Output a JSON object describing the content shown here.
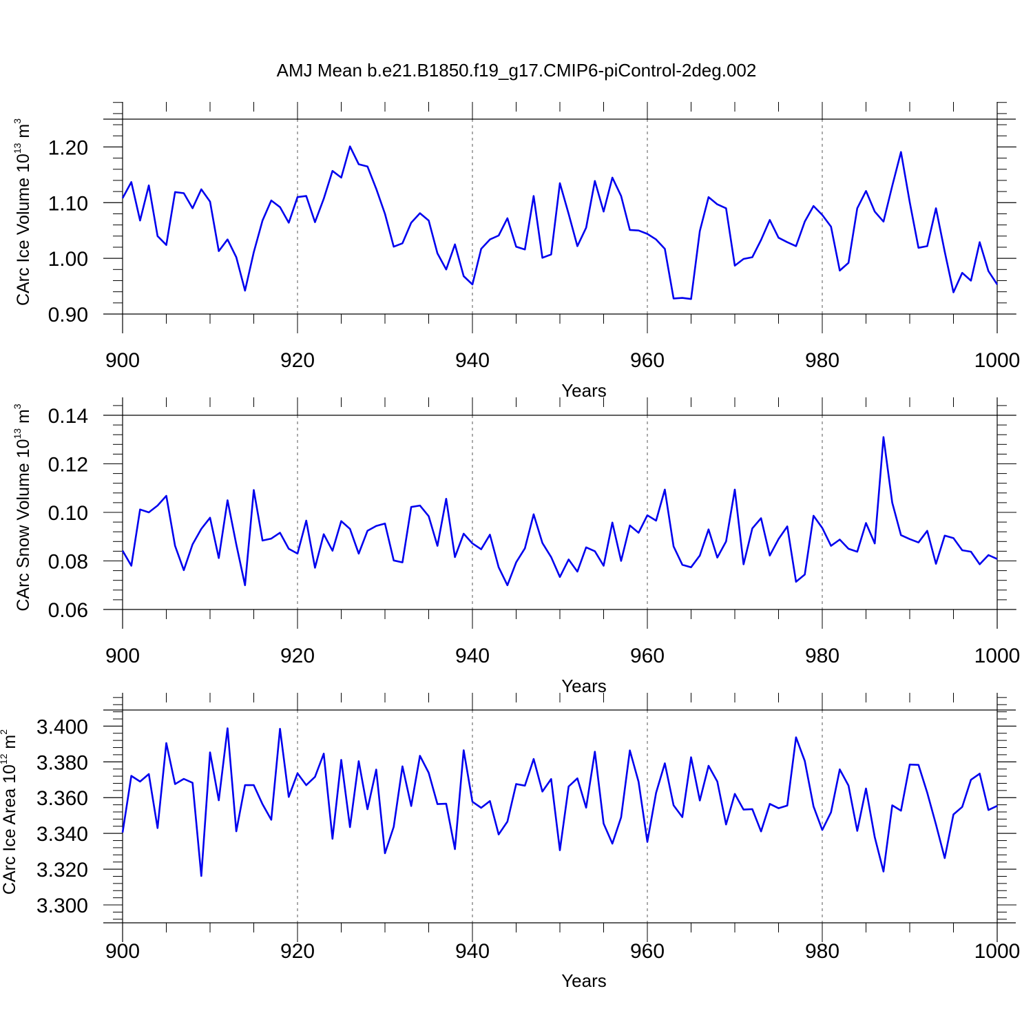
{
  "figure": {
    "title": "AMJ Mean b.e21.B1850.f19_g17.CMIP6-piControl-2deg.002"
  },
  "chart_data": [
    {
      "type": "line",
      "title": "",
      "xlabel": "Years",
      "ylabel": "CArc Ice Volume",
      "ylabel_exponent_base": "10",
      "ylabel_exponent": "13",
      "ylabel_unit": "m",
      "ylabel_unit_power": "3",
      "xlim": [
        900,
        1000
      ],
      "ylim": [
        0.9,
        1.25
      ],
      "xticks": [
        900,
        920,
        940,
        960,
        980,
        1000
      ],
      "xtick_labels": [
        "900",
        "920",
        "940",
        "960",
        "980",
        "1000"
      ],
      "yticks": [
        0.9,
        1.0,
        1.1,
        1.2
      ],
      "ytick_labels": [
        "0.90",
        "1.00",
        "1.10",
        "1.20"
      ],
      "grid": "vertical dashed at major x ticks",
      "line_color": "#0000ee",
      "series": [
        {
          "x": [
            900,
            901,
            902,
            903,
            904,
            905,
            906,
            907,
            908,
            909,
            910,
            911,
            912,
            913,
            914,
            915,
            916,
            917,
            918,
            919,
            920,
            921,
            922,
            923,
            924,
            925,
            926,
            927,
            928,
            929,
            930,
            931,
            932,
            933,
            934,
            935,
            936,
            937,
            938,
            939,
            940,
            941,
            942,
            943,
            944,
            945,
            946,
            947,
            948,
            949,
            950,
            951,
            952,
            953,
            954,
            955,
            956,
            957,
            958,
            959,
            960,
            961,
            962,
            963,
            964,
            965,
            966,
            967,
            968,
            969,
            970,
            971,
            972,
            973,
            974,
            975,
            976,
            977,
            978,
            979,
            980,
            981,
            982,
            983,
            984,
            985,
            986,
            987,
            988,
            989,
            990,
            991,
            992,
            993,
            994,
            995,
            996,
            997,
            998,
            999,
            1000
          ],
          "values": [
            1.108,
            1.137,
            1.068,
            1.131,
            1.04,
            1.024,
            1.119,
            1.117,
            1.09,
            1.124,
            1.102,
            1.013,
            1.034,
            1.002,
            0.942,
            1.011,
            1.068,
            1.104,
            1.092,
            1.064,
            1.11,
            1.112,
            1.065,
            1.107,
            1.157,
            1.145,
            1.201,
            1.169,
            1.165,
            1.125,
            1.08,
            1.021,
            1.027,
            1.064,
            1.081,
            1.068,
            1.009,
            0.98,
            1.025,
            0.968,
            0.953,
            1.017,
            1.034,
            1.041,
            1.072,
            1.021,
            1.016,
            1.112,
            1.001,
            1.007,
            1.135,
            1.08,
            1.022,
            1.055,
            1.139,
            1.084,
            1.145,
            1.112,
            1.051,
            1.05,
            1.044,
            1.034,
            1.017,
            0.928,
            0.929,
            0.927,
            1.049,
            1.11,
            1.097,
            1.09,
            0.987,
            0.999,
            1.002,
            1.033,
            1.069,
            1.037,
            1.029,
            1.022,
            1.066,
            1.094,
            1.078,
            1.057,
            0.978,
            0.992,
            1.09,
            1.121,
            1.084,
            1.066,
            1.13,
            1.191,
            1.101,
            1.019,
            1.022,
            1.09,
            1.012,
            0.939,
            0.974,
            0.96,
            1.029,
            0.977,
            0.953
          ]
        }
      ]
    },
    {
      "type": "line",
      "title": "",
      "xlabel": "Years",
      "ylabel": "CArc Snow Volume",
      "ylabel_exponent_base": "10",
      "ylabel_exponent": "13",
      "ylabel_unit": "m",
      "ylabel_unit_power": "3",
      "xlim": [
        900,
        1000
      ],
      "ylim": [
        0.06,
        0.14
      ],
      "xticks": [
        900,
        920,
        940,
        960,
        980,
        1000
      ],
      "xtick_labels": [
        "900",
        "920",
        "940",
        "960",
        "980",
        "1000"
      ],
      "yticks": [
        0.06,
        0.08,
        0.1,
        0.12,
        0.14
      ],
      "ytick_labels": [
        "0.06",
        "0.08",
        "0.10",
        "0.12",
        "0.14"
      ],
      "grid": "vertical dashed at major x ticks",
      "line_color": "#0000ee",
      "series": [
        {
          "x": [
            900,
            901,
            902,
            903,
            904,
            905,
            906,
            907,
            908,
            909,
            910,
            911,
            912,
            913,
            914,
            915,
            916,
            917,
            918,
            919,
            920,
            921,
            922,
            923,
            924,
            925,
            926,
            927,
            928,
            929,
            930,
            931,
            932,
            933,
            934,
            935,
            936,
            937,
            938,
            939,
            940,
            941,
            942,
            943,
            944,
            945,
            946,
            947,
            948,
            949,
            950,
            951,
            952,
            953,
            954,
            955,
            956,
            957,
            958,
            959,
            960,
            961,
            962,
            963,
            964,
            965,
            966,
            967,
            968,
            969,
            970,
            971,
            972,
            973,
            974,
            975,
            976,
            977,
            978,
            979,
            980,
            981,
            982,
            983,
            984,
            985,
            986,
            987,
            988,
            989,
            990,
            991,
            992,
            993,
            994,
            995,
            996,
            997,
            998,
            999,
            1000
          ],
          "values": [
            0.0842,
            0.078,
            0.1012,
            0.1,
            0.1028,
            0.1068,
            0.0862,
            0.0762,
            0.0868,
            0.0932,
            0.0978,
            0.0812,
            0.105,
            0.0868,
            0.07,
            0.1092,
            0.0884,
            0.0892,
            0.0916,
            0.085,
            0.083,
            0.0966,
            0.0772,
            0.091,
            0.0842,
            0.0964,
            0.0932,
            0.083,
            0.0924,
            0.0944,
            0.0954,
            0.0802,
            0.0794,
            0.1022,
            0.1028,
            0.0984,
            0.0862,
            0.1056,
            0.0816,
            0.0912,
            0.0872,
            0.0848,
            0.0908,
            0.0774,
            0.07,
            0.0794,
            0.0852,
            0.0992,
            0.0874,
            0.0816,
            0.0734,
            0.0806,
            0.0756,
            0.0856,
            0.084,
            0.078,
            0.0958,
            0.08,
            0.0946,
            0.0916,
            0.0988,
            0.0966,
            0.1094,
            0.086,
            0.0784,
            0.0774,
            0.0822,
            0.093,
            0.0814,
            0.088,
            0.1094,
            0.0786,
            0.0934,
            0.0976,
            0.0822,
            0.089,
            0.0942,
            0.0714,
            0.0744,
            0.0986,
            0.0936,
            0.0862,
            0.0888,
            0.085,
            0.0838,
            0.0956,
            0.0872,
            0.131,
            0.104,
            0.0906,
            0.089,
            0.0876,
            0.0924,
            0.0788,
            0.0904,
            0.0894,
            0.0844,
            0.0838,
            0.0786,
            0.0824,
            0.0808
          ]
        }
      ]
    },
    {
      "type": "line",
      "title": "",
      "xlabel": "Years",
      "ylabel": "CArc Ice Area",
      "ylabel_exponent_base": "10",
      "ylabel_exponent": "12",
      "ylabel_unit": "m",
      "ylabel_unit_power": "2",
      "xlim": [
        900,
        1000
      ],
      "ylim": [
        3.29,
        3.409
      ],
      "xticks": [
        900,
        920,
        940,
        960,
        980,
        1000
      ],
      "xtick_labels": [
        "900",
        "920",
        "940",
        "960",
        "980",
        "1000"
      ],
      "yticks": [
        3.3,
        3.32,
        3.34,
        3.36,
        3.38,
        3.4
      ],
      "ytick_labels": [
        "3.300",
        "3.320",
        "3.340",
        "3.360",
        "3.380",
        "3.400"
      ],
      "grid": "vertical dashed at major x ticks",
      "line_color": "#0000ee",
      "series": [
        {
          "x": [
            900,
            901,
            902,
            903,
            904,
            905,
            906,
            907,
            908,
            909,
            910,
            911,
            912,
            913,
            914,
            915,
            916,
            917,
            918,
            919,
            920,
            921,
            922,
            923,
            924,
            925,
            926,
            927,
            928,
            929,
            930,
            931,
            932,
            933,
            934,
            935,
            936,
            937,
            938,
            939,
            940,
            941,
            942,
            943,
            944,
            945,
            946,
            947,
            948,
            949,
            950,
            951,
            952,
            953,
            954,
            955,
            956,
            957,
            958,
            959,
            960,
            961,
            962,
            963,
            964,
            965,
            966,
            967,
            968,
            969,
            970,
            971,
            972,
            973,
            974,
            975,
            976,
            977,
            978,
            979,
            980,
            981,
            982,
            983,
            984,
            985,
            986,
            987,
            988,
            989,
            990,
            991,
            992,
            993,
            994,
            995,
            996,
            997,
            998,
            999,
            1000
          ],
          "values": [
            3.3405,
            3.3722,
            3.369,
            3.3732,
            3.343,
            3.3905,
            3.3676,
            3.3705,
            3.3683,
            3.3162,
            3.3853,
            3.3585,
            3.3988,
            3.3412,
            3.367,
            3.367,
            3.3563,
            3.3476,
            3.3985,
            3.3604,
            3.3736,
            3.367,
            3.3716,
            3.3846,
            3.337,
            3.3811,
            3.3435,
            3.3804,
            3.3535,
            3.3757,
            3.3289,
            3.3437,
            3.3775,
            3.3553,
            3.3834,
            3.3739,
            3.3564,
            3.3566,
            3.3312,
            3.3865,
            3.3577,
            3.3543,
            3.3581,
            3.3394,
            3.3466,
            3.3676,
            3.3667,
            3.3816,
            3.3634,
            3.3704,
            3.3306,
            3.3662,
            3.3708,
            3.3544,
            3.3857,
            3.3455,
            3.3343,
            3.349,
            3.3864,
            3.3688,
            3.3353,
            3.3627,
            3.3792,
            3.3557,
            3.3491,
            3.3826,
            3.3584,
            3.3778,
            3.369,
            3.345,
            3.3621,
            3.3533,
            3.3536,
            3.3411,
            3.3565,
            3.3541,
            3.3556,
            3.3937,
            3.3805,
            3.3551,
            3.3419,
            3.3518,
            3.3758,
            3.3667,
            3.3414,
            3.3651,
            3.3379,
            3.3187,
            3.3557,
            3.3527,
            3.3785,
            3.3783,
            3.3628,
            3.345,
            3.3262,
            3.3506,
            3.3548,
            3.37,
            3.3734,
            3.3531,
            3.3554
          ]
        }
      ]
    }
  ]
}
